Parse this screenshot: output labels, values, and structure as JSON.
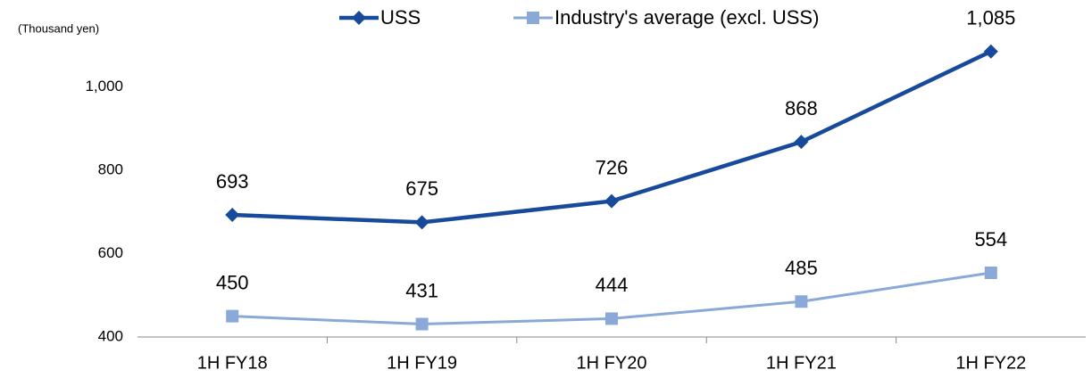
{
  "chart_data": {
    "type": "line",
    "y_unit_label": "(Thousand yen)",
    "categories": [
      "1H FY18",
      "1H FY19",
      "1H FY20",
      "1H FY21",
      "1H FY22"
    ],
    "series": [
      {
        "name": "USS",
        "color": "#184a9b",
        "marker": "diamond",
        "values": [
          693,
          675,
          726,
          868,
          1085
        ],
        "value_labels": [
          "693",
          "675",
          "726",
          "868",
          "1,085"
        ]
      },
      {
        "name": "Industry's average (excl. USS)",
        "color": "#8aa8d8",
        "marker": "square",
        "values": [
          450,
          431,
          444,
          485,
          554
        ]
      }
    ],
    "ylim": [
      400,
      1100
    ],
    "yticks": [
      400,
      600,
      800,
      {
        "value": 1000,
        "label": "1,000"
      }
    ],
    "legend": "top"
  }
}
